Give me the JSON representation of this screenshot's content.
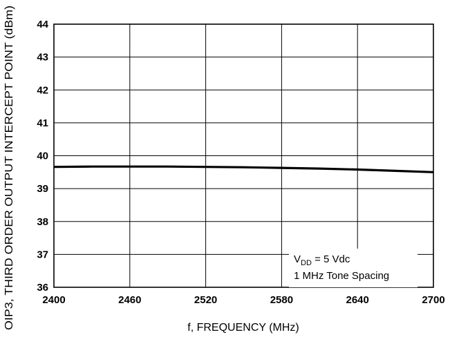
{
  "chart_data": {
    "type": "line",
    "xlabel": "f, FREQUENCY (MHz)",
    "ylabel": "OIP3, THIRD ORDER OUTPUT INTERCEPT POINT (dBm)",
    "xlim": [
      2400,
      2700
    ],
    "ylim": [
      36,
      44
    ],
    "x_ticks": [
      "2400",
      "2460",
      "2520",
      "2580",
      "2640",
      "2700"
    ],
    "y_ticks": [
      "36",
      "37",
      "38",
      "39",
      "40",
      "41",
      "42",
      "43",
      "44"
    ],
    "grid": true,
    "series": [
      {
        "x": [
          2400,
          2430,
          2460,
          2490,
          2520,
          2550,
          2580,
          2610,
          2640,
          2670,
          2700
        ],
        "y": [
          39.66,
          39.67,
          39.67,
          39.67,
          39.66,
          39.65,
          39.63,
          39.61,
          39.58,
          39.54,
          39.5
        ]
      }
    ],
    "annotation": {
      "line1_main": "V",
      "line1_sub": "DD",
      "line1_rest": " = 5 Vdc",
      "line2": "1 MHz Tone Spacing"
    },
    "colors": {
      "line": "#000000",
      "grid": "#000000",
      "background": "#ffffff"
    }
  }
}
